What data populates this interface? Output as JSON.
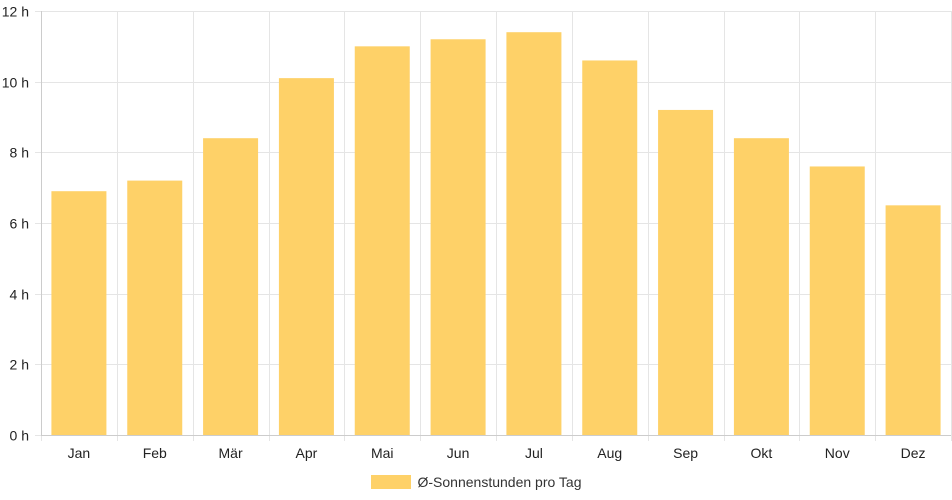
{
  "chart_data": {
    "type": "bar",
    "title": "",
    "xlabel": "",
    "ylabel": "",
    "categories": [
      "Jan",
      "Feb",
      "Mär",
      "Apr",
      "Mai",
      "Jun",
      "Jul",
      "Aug",
      "Sep",
      "Okt",
      "Nov",
      "Dez"
    ],
    "series": [
      {
        "name": "Ø-Sonnenstunden pro Tag",
        "values": [
          6.9,
          7.2,
          8.4,
          10.1,
          11.0,
          11.2,
          11.4,
          10.6,
          9.2,
          8.4,
          7.6,
          6.5
        ]
      }
    ],
    "ylim": [
      0,
      12
    ],
    "yticks": [
      "0 h",
      "2 h",
      "4 h",
      "6 h",
      "8 h",
      "10 h",
      "12 h"
    ],
    "grid": true,
    "legend_position": "bottom",
    "colors": {
      "bar": "#FED168",
      "grid": "#E5E5E5",
      "axis": "#CCCCCC",
      "text": "#222222"
    }
  }
}
